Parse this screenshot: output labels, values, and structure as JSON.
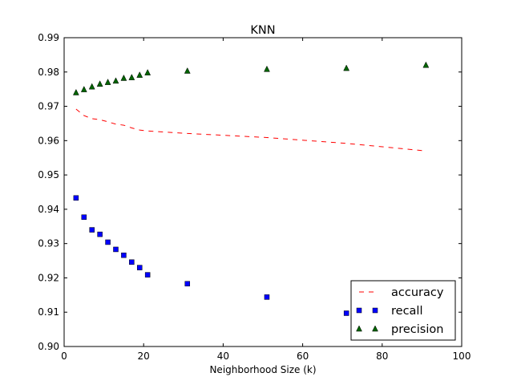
{
  "chart_data": {
    "type": "line",
    "title": "KNN",
    "xlabel": "Neighborhood Size (k)",
    "ylabel": "",
    "xlim": [
      0,
      100
    ],
    "ylim": [
      0.9,
      0.99
    ],
    "xticks": [
      0,
      20,
      40,
      60,
      80,
      100
    ],
    "xtick_labels": [
      "0",
      "20",
      "40",
      "60",
      "80",
      "100"
    ],
    "yticks": [
      0.9,
      0.91,
      0.92,
      0.93,
      0.94,
      0.95,
      0.96,
      0.97,
      0.98,
      0.99
    ],
    "ytick_labels": [
      "0.90",
      "0.91",
      "0.92",
      "0.93",
      "0.94",
      "0.95",
      "0.96",
      "0.97",
      "0.98",
      "0.99"
    ],
    "grid": false,
    "legend": "lower-right",
    "series": [
      {
        "name": "accuracy",
        "style": "dashed-line",
        "color": "#ff0000",
        "x": [
          3,
          5,
          7,
          9,
          11,
          13,
          15,
          17,
          19,
          21,
          31,
          51,
          71,
          91
        ],
        "y": [
          0.9692,
          0.9673,
          0.9664,
          0.9661,
          0.9655,
          0.9648,
          0.9645,
          0.9637,
          0.9631,
          0.9628,
          0.9621,
          0.9609,
          0.9592,
          0.957
        ]
      },
      {
        "name": "recall",
        "style": "square-markers",
        "color": "#0000ff",
        "x": [
          3,
          5,
          7,
          9,
          11,
          13,
          15,
          17,
          19,
          21,
          31,
          51,
          71,
          91
        ],
        "y": [
          0.9433,
          0.9377,
          0.934,
          0.9327,
          0.9304,
          0.9283,
          0.9266,
          0.9246,
          0.923,
          0.9209,
          0.9183,
          0.9144,
          0.9097,
          0.9081
        ]
      },
      {
        "name": "precision",
        "style": "triangle-markers",
        "color": "#006400",
        "x": [
          3,
          5,
          7,
          9,
          11,
          13,
          15,
          17,
          19,
          21,
          31,
          51,
          71,
          91
        ],
        "y": [
          0.974,
          0.9749,
          0.9757,
          0.9765,
          0.977,
          0.9774,
          0.9782,
          0.9784,
          0.9791,
          0.9798,
          0.9803,
          0.9808,
          0.9811,
          0.982
        ]
      }
    ]
  }
}
